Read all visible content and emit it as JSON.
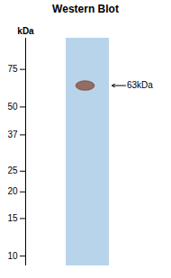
{
  "chart_data": {
    "type": "blot",
    "title": "Western Blot",
    "ylabel": "kDa",
    "log": "y",
    "ylim": [
      9,
      105
    ],
    "yticks": [
      10,
      15,
      20,
      25,
      37,
      50,
      75
    ],
    "values": [
      63
    ],
    "colors": [
      "#b8d4ea",
      "#8B5E52"
    ],
    "annotations": [
      {
        "text": "63kDa",
        "y": 63
      }
    ]
  }
}
